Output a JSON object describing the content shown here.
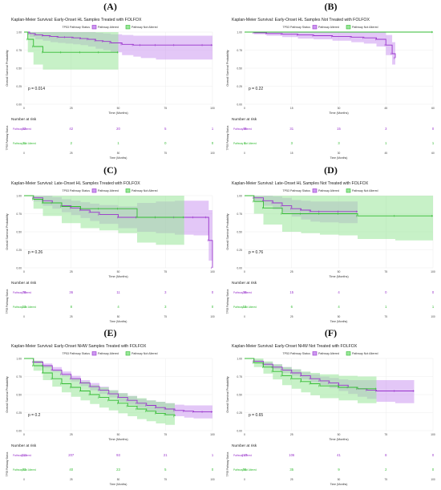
{
  "legend_title": "TP53 Pathway Status",
  "risk_title": "Number at risk",
  "risk_axis_label": "TP53 Pathway Status",
  "chart_data": [
    {
      "type": "line",
      "panel": "(A)",
      "title": "Kaplan-Meier Survival: Early-Onset HL Samples Treated with FOLFOX",
      "xlabel": "Time (Months)",
      "ylabel": "Overall Survival Probability",
      "xlim": [
        0,
        100
      ],
      "ylim": [
        0,
        1
      ],
      "xticks": [
        0,
        25,
        50,
        75,
        100
      ],
      "yticks": [
        "0.00",
        "0.25",
        "0.50",
        "0.75",
        "1.00"
      ],
      "pvalue": "p = 0.014",
      "legend_position": "top",
      "series": [
        {
          "name": "Pathway Altered",
          "color": "#9933cc",
          "fill": "#cc99f0",
          "x": [
            0,
            3,
            6,
            10,
            14,
            18,
            22,
            26,
            30,
            34,
            38,
            42,
            46,
            52,
            58,
            62,
            70,
            80,
            95,
            100
          ],
          "y": [
            1.0,
            0.98,
            0.96,
            0.95,
            0.94,
            0.93,
            0.93,
            0.92,
            0.91,
            0.9,
            0.88,
            0.87,
            0.85,
            0.83,
            0.82,
            0.82,
            0.82,
            0.82,
            0.82,
            0.82
          ],
          "lower": [
            1.0,
            0.93,
            0.9,
            0.88,
            0.86,
            0.85,
            0.84,
            0.83,
            0.82,
            0.8,
            0.77,
            0.75,
            0.72,
            0.68,
            0.66,
            0.64,
            0.62,
            0.62,
            0.62,
            0.62
          ],
          "upper": [
            1.0,
            1.0,
            1.0,
            1.0,
            1.0,
            1.0,
            1.0,
            1.0,
            1.0,
            1.0,
            0.99,
            0.98,
            0.97,
            0.96,
            0.95,
            0.95,
            0.95,
            0.95,
            0.95,
            0.95
          ]
        },
        {
          "name": "Pathway Not Altered",
          "color": "#33bb33",
          "fill": "#99e699",
          "x": [
            0,
            2,
            5,
            10,
            20,
            30,
            40,
            50
          ],
          "y": [
            1.0,
            0.9,
            0.8,
            0.72,
            0.72,
            0.72,
            0.72,
            0.72
          ],
          "lower": [
            1.0,
            0.72,
            0.55,
            0.48,
            0.48,
            0.48,
            0.48,
            0.48
          ],
          "upper": [
            1.0,
            1.0,
            1.0,
            1.0,
            1.0,
            1.0,
            1.0,
            1.0
          ]
        }
      ],
      "risk_table": [
        [
          "62",
          "42",
          "20",
          "5",
          "1"
        ],
        [
          "11",
          "2",
          "1",
          "0",
          "0"
        ]
      ]
    },
    {
      "type": "line",
      "panel": "(B)",
      "title": "Kaplan-Meier Survival: Early-Onset HL Samples Not Treated with FOLFOX",
      "xlabel": "Time (Months)",
      "ylabel": "Overall Survival Probability",
      "xlim": [
        0,
        60
      ],
      "ylim": [
        0,
        1
      ],
      "xticks": [
        0,
        15,
        30,
        45,
        60
      ],
      "yticks": [
        "0.00",
        "0.25",
        "0.50",
        "0.75",
        "1.00"
      ],
      "pvalue": "p = 0.22",
      "legend_position": "top",
      "series": [
        {
          "name": "Pathway Altered",
          "color": "#9933cc",
          "fill": "#cc99f0",
          "x": [
            0,
            3,
            7,
            12,
            17,
            22,
            28,
            34,
            38,
            42,
            45,
            47,
            48
          ],
          "y": [
            1.0,
            0.99,
            0.98,
            0.97,
            0.96,
            0.95,
            0.94,
            0.93,
            0.92,
            0.9,
            0.82,
            0.7,
            0.64
          ],
          "lower": [
            1.0,
            0.97,
            0.95,
            0.93,
            0.91,
            0.9,
            0.88,
            0.86,
            0.84,
            0.8,
            0.68,
            0.55,
            0.48
          ],
          "upper": [
            1.0,
            1.0,
            1.0,
            1.0,
            1.0,
            1.0,
            1.0,
            1.0,
            1.0,
            1.0,
            0.96,
            0.86,
            0.8
          ]
        },
        {
          "name": "Pathway Not Altered",
          "color": "#33bb33",
          "fill": "#99e699",
          "x": [
            0,
            60
          ],
          "y": [
            1.0,
            1.0
          ],
          "lower": [
            1.0,
            1.0
          ],
          "upper": [
            1.0,
            1.0
          ]
        }
      ],
      "risk_table": [
        [
          "49",
          "31",
          "15",
          "3",
          "0"
        ],
        [
          "4",
          "3",
          "3",
          "1",
          "1"
        ]
      ]
    },
    {
      "type": "line",
      "panel": "(C)",
      "title": "Kaplan-Meier Survival: Late-Onset HL Samples Treated with FOLFOX",
      "xlabel": "Time (Months)",
      "ylabel": "Overall Survival Probability",
      "xlim": [
        0,
        100
      ],
      "ylim": [
        0,
        1
      ],
      "xticks": [
        0,
        25,
        50,
        75,
        100
      ],
      "yticks": [
        "0.00",
        "0.25",
        "0.50",
        "0.75",
        "1.00"
      ],
      "pvalue": "p = 0.26",
      "legend_position": "top",
      "series": [
        {
          "name": "Pathway Altered",
          "color": "#9933cc",
          "fill": "#cc99f0",
          "x": [
            0,
            5,
            10,
            15,
            20,
            25,
            30,
            35,
            40,
            50,
            60,
            70,
            80,
            90,
            97,
            98,
            100
          ],
          "y": [
            1.0,
            0.97,
            0.93,
            0.9,
            0.86,
            0.83,
            0.8,
            0.77,
            0.74,
            0.7,
            0.7,
            0.7,
            0.7,
            0.7,
            0.7,
            0.38,
            0.0
          ],
          "lower": [
            1.0,
            0.92,
            0.86,
            0.82,
            0.77,
            0.73,
            0.69,
            0.65,
            0.61,
            0.55,
            0.5,
            0.48,
            0.46,
            0.45,
            0.45,
            0.1,
            0.0
          ],
          "upper": [
            1.0,
            1.0,
            1.0,
            0.98,
            0.95,
            0.93,
            0.91,
            0.89,
            0.87,
            0.85,
            0.9,
            0.92,
            0.93,
            0.93,
            0.93,
            0.8,
            0.0
          ]
        },
        {
          "name": "Pathway Not Altered",
          "color": "#33bb33",
          "fill": "#99e699",
          "x": [
            0,
            5,
            10,
            20,
            30,
            40,
            50,
            60,
            70,
            85
          ],
          "y": [
            1.0,
            0.95,
            0.9,
            0.85,
            0.82,
            0.82,
            0.82,
            0.7,
            0.7,
            0.7
          ],
          "lower": [
            1.0,
            0.82,
            0.72,
            0.62,
            0.55,
            0.52,
            0.48,
            0.35,
            0.32,
            0.3
          ],
          "upper": [
            1.0,
            1.0,
            1.0,
            1.0,
            1.0,
            1.0,
            1.0,
            1.0,
            1.0,
            1.0
          ]
        }
      ],
      "risk_table": [
        [
          "78",
          "36",
          "11",
          "3",
          "0"
        ],
        [
          "13",
          "8",
          "4",
          "3",
          "0"
        ]
      ]
    },
    {
      "type": "line",
      "panel": "(D)",
      "title": "Kaplan-Meier Survival: Late-Onset HL Samples Not Treated with FOLFOX",
      "xlabel": "Time (Months)",
      "ylabel": "Overall Survival Probability",
      "xlim": [
        0,
        100
      ],
      "ylim": [
        0,
        1
      ],
      "xticks": [
        0,
        25,
        50,
        75,
        100
      ],
      "yticks": [
        "0.00",
        "0.25",
        "0.50",
        "0.75",
        "1.00"
      ],
      "pvalue": "p = 0.76",
      "legend_position": "top",
      "series": [
        {
          "name": "Pathway Altered",
          "color": "#9933cc",
          "fill": "#cc99f0",
          "x": [
            0,
            5,
            10,
            15,
            20,
            25,
            30,
            35,
            40,
            50,
            60
          ],
          "y": [
            1.0,
            0.97,
            0.93,
            0.9,
            0.86,
            0.82,
            0.8,
            0.78,
            0.78,
            0.78,
            0.78
          ],
          "lower": [
            1.0,
            0.92,
            0.86,
            0.81,
            0.76,
            0.71,
            0.67,
            0.64,
            0.63,
            0.62,
            0.62
          ],
          "upper": [
            1.0,
            1.0,
            1.0,
            0.99,
            0.97,
            0.94,
            0.93,
            0.92,
            0.92,
            0.92,
            0.92
          ]
        },
        {
          "name": "Pathway Not Altered",
          "color": "#33bb33",
          "fill": "#99e699",
          "x": [
            0,
            5,
            10,
            20,
            30,
            40,
            50,
            60,
            80,
            100
          ],
          "y": [
            1.0,
            0.92,
            0.83,
            0.75,
            0.75,
            0.75,
            0.75,
            0.72,
            0.72,
            0.72
          ],
          "lower": [
            1.0,
            0.75,
            0.6,
            0.5,
            0.48,
            0.46,
            0.45,
            0.4,
            0.38,
            0.38
          ],
          "upper": [
            1.0,
            1.0,
            1.0,
            1.0,
            1.0,
            1.0,
            1.0,
            1.0,
            1.0,
            1.0
          ]
        }
      ],
      "risk_table": [
        [
          "36",
          "15",
          "4",
          "0",
          "0"
        ],
        [
          "12",
          "6",
          "4",
          "1",
          "1"
        ]
      ]
    },
    {
      "type": "line",
      "panel": "(E)",
      "title": "Kaplan-Meier Survival: Early-Onset NHW Samples Treated with FOLFOX",
      "xlabel": "Time (Months)",
      "ylabel": "Overall Survival Probability",
      "xlim": [
        0,
        100
      ],
      "ylim": [
        0,
        1
      ],
      "xticks": [
        0,
        25,
        50,
        75,
        100
      ],
      "yticks": [
        "0.00",
        "0.25",
        "0.50",
        "0.75",
        "1.00"
      ],
      "pvalue": "p = 0.2",
      "legend_position": "top",
      "series": [
        {
          "name": "Pathway Altered",
          "color": "#9933cc",
          "fill": "#cc99f0",
          "x": [
            0,
            5,
            10,
            15,
            20,
            25,
            30,
            35,
            40,
            45,
            50,
            55,
            60,
            65,
            70,
            75,
            80,
            85,
            90,
            95,
            100
          ],
          "y": [
            1.0,
            0.95,
            0.9,
            0.84,
            0.78,
            0.72,
            0.66,
            0.61,
            0.56,
            0.51,
            0.46,
            0.42,
            0.38,
            0.35,
            0.32,
            0.3,
            0.28,
            0.27,
            0.26,
            0.26,
            0.26
          ],
          "lower": [
            1.0,
            0.93,
            0.87,
            0.81,
            0.75,
            0.68,
            0.62,
            0.56,
            0.51,
            0.46,
            0.4,
            0.36,
            0.32,
            0.28,
            0.25,
            0.22,
            0.2,
            0.18,
            0.17,
            0.17,
            0.17
          ],
          "upper": [
            1.0,
            0.97,
            0.93,
            0.88,
            0.82,
            0.76,
            0.7,
            0.66,
            0.61,
            0.56,
            0.52,
            0.48,
            0.44,
            0.42,
            0.4,
            0.38,
            0.36,
            0.35,
            0.35,
            0.35,
            0.35
          ]
        },
        {
          "name": "Pathway Not Altered",
          "color": "#33bb33",
          "fill": "#99e699",
          "x": [
            0,
            5,
            10,
            15,
            20,
            25,
            30,
            35,
            40,
            45,
            50,
            55,
            60,
            65,
            70,
            75,
            80
          ],
          "y": [
            1.0,
            0.9,
            0.8,
            0.72,
            0.65,
            0.6,
            0.55,
            0.5,
            0.46,
            0.42,
            0.38,
            0.34,
            0.3,
            0.27,
            0.24,
            0.22,
            0.2
          ],
          "lower": [
            1.0,
            0.83,
            0.7,
            0.61,
            0.53,
            0.47,
            0.42,
            0.37,
            0.32,
            0.28,
            0.24,
            0.2,
            0.16,
            0.13,
            0.1,
            0.08,
            0.06
          ],
          "upper": [
            1.0,
            0.97,
            0.9,
            0.83,
            0.77,
            0.72,
            0.68,
            0.63,
            0.6,
            0.56,
            0.52,
            0.48,
            0.45,
            0.42,
            0.4,
            0.38,
            0.36
          ]
        }
      ],
      "risk_table": [
        [
          "311",
          "207",
          "93",
          "21",
          "1"
        ],
        [
          "63",
          "40",
          "23",
          "5",
          "0"
        ]
      ]
    },
    {
      "type": "line",
      "panel": "(F)",
      "title": "Kaplan-Meier Survival: Early-Onset NHW Not Treated with FOLFOX",
      "xlabel": "Time (Months)",
      "ylabel": "Overall Survival Probability",
      "xlim": [
        0,
        100
      ],
      "ylim": [
        0,
        1
      ],
      "xticks": [
        0,
        25,
        50,
        75,
        100
      ],
      "yticks": [
        "0.00",
        "0.25",
        "0.50",
        "0.75",
        "1.00"
      ],
      "pvalue": "p = 0.65",
      "legend_position": "top",
      "series": [
        {
          "name": "Pathway Altered",
          "color": "#9933cc",
          "fill": "#cc99f0",
          "x": [
            0,
            5,
            10,
            15,
            20,
            25,
            30,
            35,
            40,
            45,
            50,
            55,
            60,
            65,
            70,
            80,
            90
          ],
          "y": [
            1.0,
            0.96,
            0.92,
            0.88,
            0.84,
            0.8,
            0.76,
            0.72,
            0.69,
            0.66,
            0.63,
            0.6,
            0.58,
            0.56,
            0.55,
            0.55,
            0.55
          ],
          "lower": [
            1.0,
            0.94,
            0.89,
            0.85,
            0.8,
            0.76,
            0.71,
            0.67,
            0.63,
            0.59,
            0.55,
            0.51,
            0.47,
            0.44,
            0.4,
            0.38,
            0.38
          ],
          "upper": [
            1.0,
            0.98,
            0.95,
            0.92,
            0.88,
            0.85,
            0.81,
            0.78,
            0.75,
            0.73,
            0.71,
            0.7,
            0.7,
            0.7,
            0.7,
            0.7,
            0.7
          ]
        },
        {
          "name": "Pathway Not Altered",
          "color": "#33bb33",
          "fill": "#99e699",
          "x": [
            0,
            5,
            10,
            15,
            20,
            25,
            30,
            35,
            40,
            50,
            60,
            70
          ],
          "y": [
            1.0,
            0.94,
            0.88,
            0.82,
            0.76,
            0.72,
            0.68,
            0.65,
            0.62,
            0.6,
            0.58,
            0.58
          ],
          "lower": [
            1.0,
            0.88,
            0.79,
            0.71,
            0.63,
            0.58,
            0.53,
            0.49,
            0.45,
            0.42,
            0.38,
            0.36
          ],
          "upper": [
            1.0,
            1.0,
            0.96,
            0.92,
            0.88,
            0.85,
            0.82,
            0.8,
            0.78,
            0.76,
            0.75,
            0.75
          ]
        }
      ],
      "risk_table": [
        [
          "247",
          "106",
          "41",
          "8",
          "0"
        ],
        [
          "56",
          "35",
          "9",
          "2",
          "0"
        ]
      ]
    }
  ]
}
